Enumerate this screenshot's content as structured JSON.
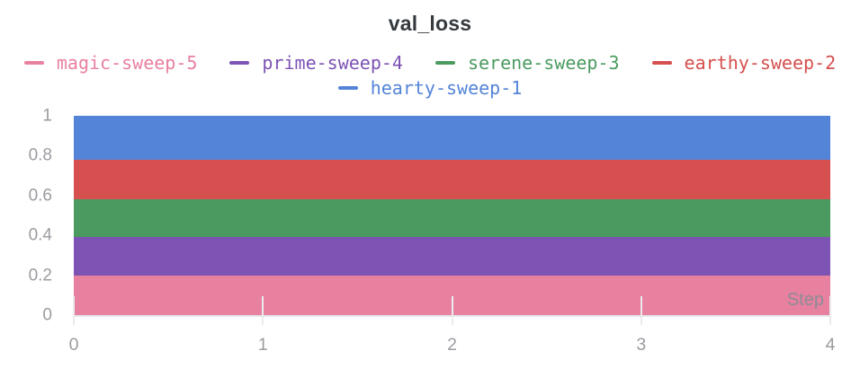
{
  "title": "val_loss",
  "colors": {
    "title_text": "#353a3f",
    "axis_text": "#9b9ba1",
    "step_label_text": "#8d8c96",
    "axis_line": "#e4e4e8",
    "tick_mark": "#ebebee",
    "background": "#ffffff"
  },
  "legend": {
    "items": [
      {
        "label": "magic-sweep-5",
        "color": "#e8809f"
      },
      {
        "label": "prime-sweep-4",
        "color": "#7d53b4"
      },
      {
        "label": "serene-sweep-3",
        "color": "#4b9b60"
      },
      {
        "label": "earthy-sweep-2",
        "color": "#d5504e"
      },
      {
        "label": "hearty-sweep-1",
        "color": "#5484d8"
      }
    ]
  },
  "axes": {
    "x_label": "Step",
    "x_tick_labels": [
      "0",
      "1",
      "2",
      "3",
      "4"
    ],
    "y_tick_labels": [
      "0",
      "0.2",
      "0.4",
      "0.6",
      "0.8",
      "1"
    ]
  },
  "chart_data": {
    "type": "area",
    "title": "val_loss",
    "xlabel": "Step",
    "ylabel": "",
    "xlim": [
      0,
      4
    ],
    "ylim": [
      0,
      1
    ],
    "x_ticks": [
      0,
      1,
      2,
      3,
      4
    ],
    "y_ticks": [
      0,
      0.2,
      0.4,
      0.6,
      0.8,
      1
    ],
    "grid": false,
    "stacked": true,
    "legend_position": "top",
    "x": [
      0,
      1,
      2,
      3,
      4
    ],
    "series": [
      {
        "name": "magic-sweep-5",
        "color": "#e8809f",
        "band": [
          0.0,
          0.2
        ],
        "values": [
          0.2,
          0.2,
          0.2,
          0.2,
          0.2
        ]
      },
      {
        "name": "prime-sweep-4",
        "color": "#7d53b4",
        "band": [
          0.2,
          0.39
        ],
        "values": [
          0.19,
          0.19,
          0.19,
          0.19,
          0.19
        ]
      },
      {
        "name": "serene-sweep-3",
        "color": "#4b9b60",
        "band": [
          0.39,
          0.58
        ],
        "values": [
          0.19,
          0.19,
          0.19,
          0.19,
          0.19
        ]
      },
      {
        "name": "earthy-sweep-2",
        "color": "#d5504e",
        "band": [
          0.58,
          0.78
        ],
        "values": [
          0.2,
          0.2,
          0.2,
          0.2,
          0.2
        ]
      },
      {
        "name": "hearty-sweep-1",
        "color": "#5484d8",
        "band": [
          0.78,
          1.0
        ],
        "values": [
          0.22,
          0.22,
          0.22,
          0.22,
          0.22
        ]
      }
    ]
  }
}
